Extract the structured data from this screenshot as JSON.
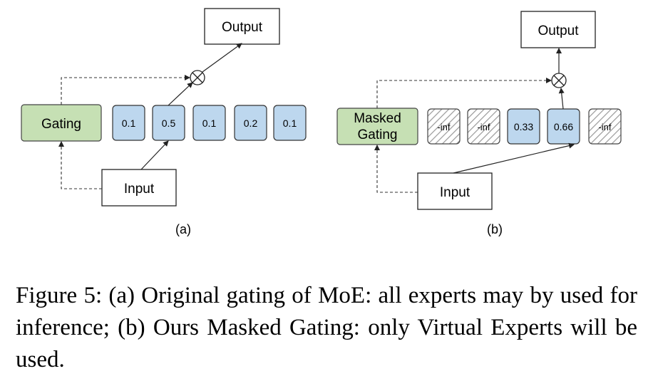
{
  "panel_a": {
    "output_label": "Output",
    "gating_label": "Gating",
    "input_label": "Input",
    "experts": [
      "0.1",
      "0.5",
      "0.1",
      "0.2",
      "0.1"
    ],
    "panel_label": "(a)",
    "multiply_symbol": "⊗"
  },
  "panel_b": {
    "output_label": "Output",
    "gating_label_line1": "Masked",
    "gating_label_line2": "Gating",
    "input_label": "Input",
    "experts": [
      "-inf",
      "-inf",
      "0.33",
      "0.66",
      "-inf"
    ],
    "panel_label": "(b)",
    "multiply_symbol": "⊗"
  },
  "colors": {
    "gating_fill": "#c6e0b4",
    "expert_fill": "#bdd7ee",
    "masked_hatch": "#9a9a9a"
  },
  "caption": "Figure 5: (a) Original gating of MoE: all experts may by used for inference; (b) Ours Masked Gating: only Virtual Experts will be used."
}
